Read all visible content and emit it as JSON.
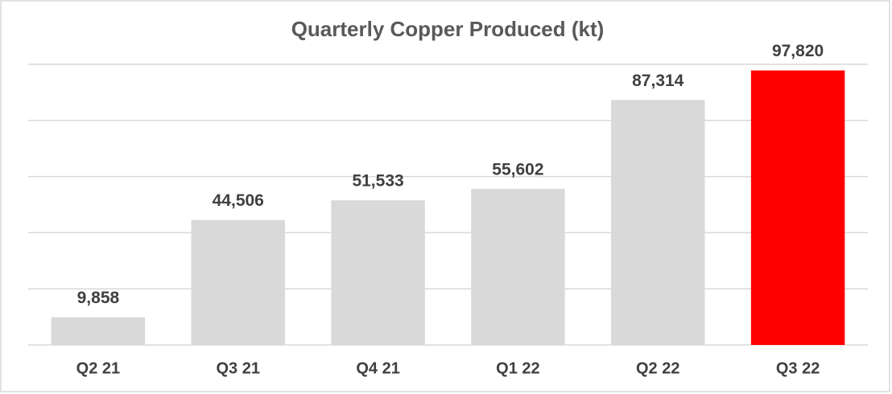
{
  "chart_data": {
    "type": "bar",
    "title": "Quarterly Copper Produced (kt)",
    "categories": [
      "Q2 21",
      "Q3 21",
      "Q4 21",
      "Q1 22",
      "Q2 22",
      "Q3 22"
    ],
    "values": [
      9858,
      44506,
      51533,
      55602,
      87314,
      97820
    ],
    "value_labels": [
      "9,858",
      "44,506",
      "51,533",
      "55,602",
      "87,314",
      "97,820"
    ],
    "colors": [
      "#d9d9d9",
      "#d9d9d9",
      "#d9d9d9",
      "#d9d9d9",
      "#d9d9d9",
      "#ff0000"
    ],
    "ylim": [
      0,
      100000
    ],
    "yticks": [
      0,
      20000,
      40000,
      60000,
      80000,
      100000
    ],
    "grid": true
  }
}
